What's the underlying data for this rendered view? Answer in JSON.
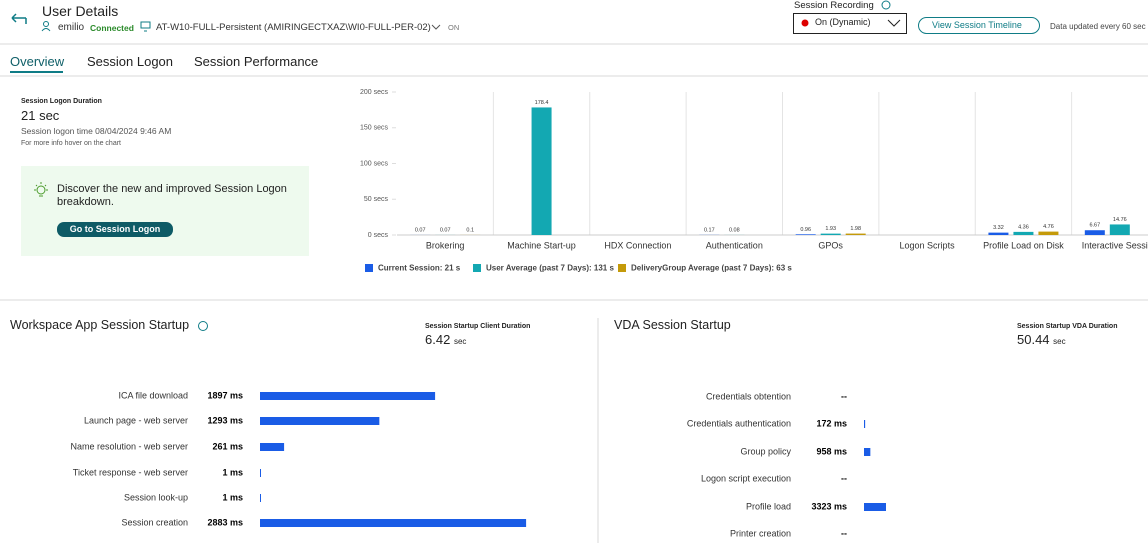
{
  "header": {
    "title": "User Details",
    "user": "emilio",
    "status": "Connected",
    "machine": "AT-W10-FULL-Persistent (AMIRINGECTXAZ\\WI0-FULL-PER-02)",
    "machine_state": "ON",
    "recording_label": "Session Recording",
    "recording_value": "On (Dynamic)",
    "timeline_button": "View Session Timeline",
    "update_note": "Data updated every 60 sec"
  },
  "tabs": [
    "Overview",
    "Session Logon",
    "Session Performance"
  ],
  "logon_summary": {
    "label": "Session Logon Duration",
    "duration": "21 sec",
    "logon_time": "Session logon time 08/04/2024 9:46 AM",
    "hint": "For more info hover on the chart",
    "promo": "Discover the new and improved Session Logon breakdown.",
    "promo_button": "Go to Session Logon"
  },
  "logon_chart": {
    "type": "bar",
    "categories": [
      "Brokering",
      "Machine Start-up",
      "HDX Connection",
      "Authentication",
      "GPOs",
      "Logon Scripts",
      "Profile Load on Disk",
      "Interactive Session"
    ],
    "series": [
      {
        "name": "Current Session: 21 s",
        "color": "#1a5ce6",
        "values": [
          0.07,
          null,
          null,
          0.17,
          0.96,
          null,
          3.32,
          6.67
        ]
      },
      {
        "name": "User Average (past 7 Days): 131 s",
        "color": "#13a8b2",
        "values": [
          0.07,
          178.4,
          null,
          0.08,
          1.93,
          null,
          4.36,
          14.76
        ]
      },
      {
        "name": "DeliveryGroup Average (past 7 Days): 63 s",
        "color": "#c49a0a",
        "values": [
          0.1,
          null,
          null,
          null,
          1.98,
          null,
          4.76,
          null
        ]
      }
    ],
    "ylim": [
      0,
      200
    ],
    "yticks": [
      {
        "value": 0,
        "label": "0 secs"
      },
      {
        "value": 50,
        "label": "50 secs"
      },
      {
        "value": 100,
        "label": "100 secs"
      },
      {
        "value": 150,
        "label": "150 secs"
      },
      {
        "value": 200,
        "label": "200 secs"
      }
    ]
  },
  "workspace_startup": {
    "type": "bar",
    "title": "Workspace App Session Startup",
    "duration_label": "Session Startup Client Duration",
    "duration": 6.42,
    "duration_unit": "sec",
    "color": "#1a5ce6",
    "categories": [
      "ICA file download",
      "Launch page - web server",
      "Name resolution - web server",
      "Ticket response - web server",
      "Session look-up",
      "Session creation"
    ],
    "values": [
      1897,
      1293,
      261,
      1,
      1,
      2883
    ],
    "value_labels": [
      "1897 ms",
      "1293 ms",
      "261 ms",
      "1 ms",
      "1 ms",
      "2883 ms"
    ]
  },
  "vda_startup": {
    "type": "bar",
    "title": "VDA Session Startup",
    "duration_label": "Session Startup VDA Duration",
    "duration": 50.44,
    "duration_unit": "sec",
    "color": "#1a5ce6",
    "categories": [
      "Credentials obtention",
      "Credentials authentication",
      "Group policy",
      "Logon script execution",
      "Profile load",
      "Printer creation"
    ],
    "values": [
      null,
      172,
      958,
      null,
      3323,
      null
    ],
    "value_labels": [
      "--",
      "172 ms",
      "958 ms",
      "--",
      "3323 ms",
      "--"
    ]
  }
}
